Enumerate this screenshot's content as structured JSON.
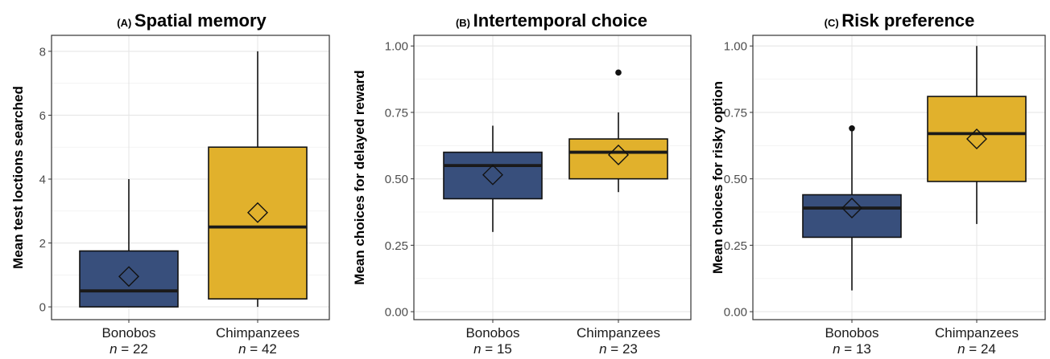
{
  "chart_data": [
    {
      "type": "box",
      "panel_tag": "(A)",
      "title": "Spatial memory",
      "ylabel": "Mean test loctions searched",
      "xlabel": "",
      "ylim": [
        -0.4,
        8.5
      ],
      "yticks": [
        0,
        2,
        4,
        6,
        8
      ],
      "ytick_labels": [
        "0",
        "2",
        "4",
        "6",
        "8"
      ],
      "grid": true,
      "categories": [
        "Bonobos",
        "Chimpanzees"
      ],
      "n_labels": [
        "22",
        "42"
      ],
      "boxes": [
        {
          "group": "Bonobos",
          "color": "#384f7c",
          "min": 0,
          "q1": 0,
          "median": 0.5,
          "q3": 1.75,
          "max": 4,
          "mean": 0.95,
          "outliers": []
        },
        {
          "group": "Chimpanzees",
          "color": "#e1b12c",
          "min": 0,
          "q1": 0.25,
          "median": 2.5,
          "q3": 5,
          "max": 8,
          "mean": 2.95,
          "outliers": []
        }
      ]
    },
    {
      "type": "box",
      "panel_tag": "(B)",
      "title": "Intertemporal choice",
      "ylabel": "Mean choices for delayed reward",
      "xlabel": "",
      "ylim": [
        -0.03,
        1.04
      ],
      "yticks": [
        0,
        0.25,
        0.5,
        0.75,
        1
      ],
      "ytick_labels": [
        "0.00",
        "0.25",
        "0.50",
        "0.75",
        "1.00"
      ],
      "grid": true,
      "categories": [
        "Bonobos",
        "Chimpanzees"
      ],
      "n_labels": [
        "15",
        "23"
      ],
      "boxes": [
        {
          "group": "Bonobos",
          "color": "#384f7c",
          "min": 0.3,
          "q1": 0.425,
          "median": 0.55,
          "q3": 0.6,
          "max": 0.7,
          "mean": 0.515,
          "outliers": []
        },
        {
          "group": "Chimpanzees",
          "color": "#e1b12c",
          "min": 0.45,
          "q1": 0.5,
          "median": 0.6,
          "q3": 0.65,
          "max": 0.75,
          "mean": 0.59,
          "outliers": [
            0.9
          ]
        }
      ]
    },
    {
      "type": "box",
      "panel_tag": "(C)",
      "title": "Risk preference",
      "ylabel": "Mean choices for risky option",
      "xlabel": "",
      "ylim": [
        -0.03,
        1.04
      ],
      "yticks": [
        0,
        0.25,
        0.5,
        0.75,
        1
      ],
      "ytick_labels": [
        "0.00",
        "0.25",
        "0.50",
        "0.75",
        "1.00"
      ],
      "grid": true,
      "categories": [
        "Bonobos",
        "Chimpanzees"
      ],
      "n_labels": [
        "13",
        "24"
      ],
      "boxes": [
        {
          "group": "Bonobos",
          "color": "#384f7c",
          "min": 0.08,
          "q1": 0.28,
          "median": 0.39,
          "q3": 0.44,
          "max": 0.68,
          "mean": 0.39,
          "outliers": [
            0.69
          ]
        },
        {
          "group": "Chimpanzees",
          "color": "#e1b12c",
          "min": 0.33,
          "q1": 0.49,
          "median": 0.67,
          "q3": 0.81,
          "max": 1,
          "mean": 0.65,
          "outliers": []
        }
      ]
    }
  ]
}
